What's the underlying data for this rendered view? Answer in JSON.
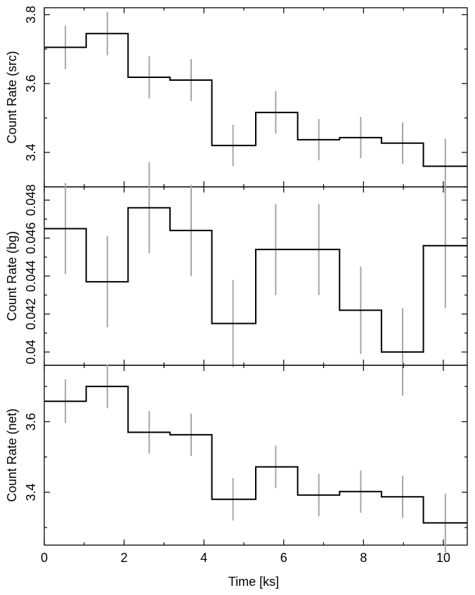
{
  "chart_data": [
    {
      "type": "line",
      "style": "step",
      "title": "",
      "xlabel": "Time [ks]",
      "ylabel": "Count Rate (src)",
      "xlim": [
        0,
        10.6
      ],
      "ylim": [
        3.3,
        3.82
      ],
      "yticks_major": [
        3.4,
        3.6,
        3.8
      ],
      "ytick_labels": [
        "3.4",
        "3.6",
        "3.8"
      ],
      "yticks_minor": [
        3.3,
        3.5,
        3.7
      ],
      "bin_edges": [
        0,
        1.05,
        2.1,
        3.15,
        4.2,
        5.3,
        6.35,
        7.4,
        8.45,
        9.5,
        10.6
      ],
      "x": [
        0.53,
        1.58,
        2.63,
        3.68,
        4.73,
        5.8,
        6.88,
        7.93,
        8.98,
        10.05
      ],
      "y": [
        3.705,
        3.745,
        3.618,
        3.61,
        3.42,
        3.516,
        3.437,
        3.443,
        3.427,
        3.36
      ],
      "errors": [
        0.063,
        0.063,
        0.061,
        0.061,
        0.06,
        0.062,
        0.06,
        0.06,
        0.06,
        0.08
      ],
      "step_color": "#000000",
      "error_color": "#a6a6a6"
    },
    {
      "type": "line",
      "style": "step",
      "title": "",
      "xlabel": "Time [ks]",
      "ylabel": "Count Rate (bg)",
      "xlim": [
        0,
        10.6
      ],
      "ylim": [
        0.0393,
        0.0487
      ],
      "yticks_major": [
        0.04,
        0.042,
        0.044,
        0.046,
        0.048
      ],
      "ytick_labels": [
        "0.04",
        "0.042",
        "0.044",
        "0.046",
        "0.048"
      ],
      "yticks_minor": [
        0.041,
        0.043,
        0.045,
        0.047
      ],
      "bin_edges": [
        0,
        1.05,
        2.1,
        3.15,
        4.2,
        5.3,
        6.35,
        7.4,
        8.45,
        9.5,
        10.6
      ],
      "x": [
        0.53,
        1.58,
        2.63,
        3.68,
        4.73,
        5.8,
        6.88,
        7.93,
        8.98,
        10.05
      ],
      "y": [
        0.0465,
        0.0437,
        0.0476,
        0.0464,
        0.0415,
        0.0454,
        0.0454,
        0.0422,
        0.04,
        0.0456
      ],
      "errors": [
        0.0024,
        0.0024,
        0.0024,
        0.0024,
        0.0023,
        0.0024,
        0.0024,
        0.0023,
        0.0023,
        0.0033
      ],
      "step_color": "#000000",
      "error_color": "#a6a6a6"
    },
    {
      "type": "line",
      "style": "step",
      "title": "",
      "xlabel": "Time [ks]",
      "ylabel": "Count Rate (net)",
      "xlim": [
        0,
        10.6
      ],
      "ylim": [
        3.25,
        3.76
      ],
      "yticks_major": [
        3.4,
        3.6
      ],
      "ytick_labels": [
        "3.4",
        "3.6"
      ],
      "yticks_minor": [
        3.3,
        3.5,
        3.7
      ],
      "bin_edges": [
        0,
        1.05,
        2.1,
        3.15,
        4.2,
        5.3,
        6.35,
        7.4,
        8.45,
        9.5,
        10.6
      ],
      "x": [
        0.53,
        1.58,
        2.63,
        3.68,
        4.73,
        5.8,
        6.88,
        7.93,
        8.98,
        10.05
      ],
      "y": [
        3.658,
        3.7,
        3.57,
        3.563,
        3.38,
        3.472,
        3.392,
        3.402,
        3.387,
        3.313
      ],
      "errors": [
        0.062,
        0.062,
        0.06,
        0.06,
        0.06,
        0.06,
        0.06,
        0.06,
        0.06,
        0.083
      ],
      "step_color": "#000000",
      "error_color": "#a6a6a6"
    }
  ],
  "shared_x": {
    "label": "Time [ks]",
    "ticks_major": [
      0,
      2,
      4,
      6,
      8,
      10
    ],
    "tick_labels": [
      "0",
      "2",
      "4",
      "6",
      "8",
      "10"
    ],
    "ticks_minor": [
      1,
      3,
      5,
      7,
      9
    ]
  }
}
